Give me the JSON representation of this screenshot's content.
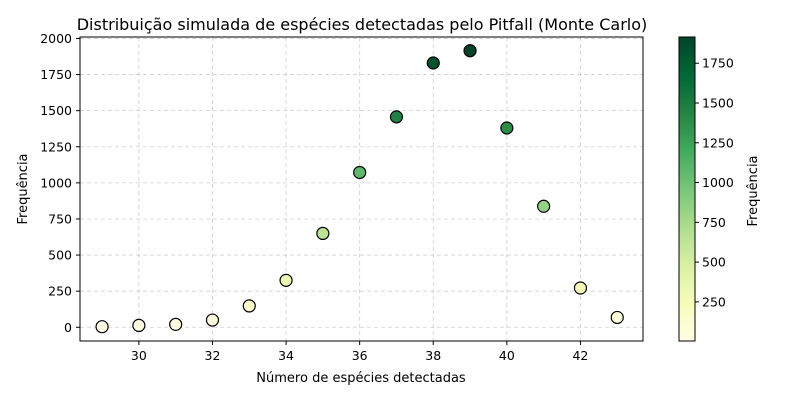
{
  "chart_data": {
    "type": "scatter",
    "title": "Distribuição simulada de espécies detectadas pelo Pitfall (Monte Carlo)",
    "xlabel": "Número de espécies detectadas",
    "ylabel": "Frequência",
    "xlim": [
      28.4,
      43.7
    ],
    "ylim": [
      -95,
      2010
    ],
    "x_ticks": [
      30,
      32,
      34,
      36,
      38,
      40,
      42
    ],
    "y_ticks": [
      0,
      250,
      500,
      750,
      1000,
      1250,
      1500,
      1750,
      2000
    ],
    "x": [
      29,
      30,
      31,
      32,
      33,
      34,
      35,
      36,
      37,
      38,
      39,
      40,
      41,
      42,
      43
    ],
    "y": [
      4,
      13,
      20,
      50,
      148,
      325,
      650,
      1072,
      1457,
      1830,
      1915,
      1380,
      838,
      272,
      68
    ],
    "grid": true,
    "colormap": "YlGn",
    "colorbar": {
      "label": "Frequência",
      "range": [
        4,
        1915
      ],
      "ticks": [
        250,
        500,
        750,
        1000,
        1250,
        1500,
        1750
      ]
    }
  }
}
